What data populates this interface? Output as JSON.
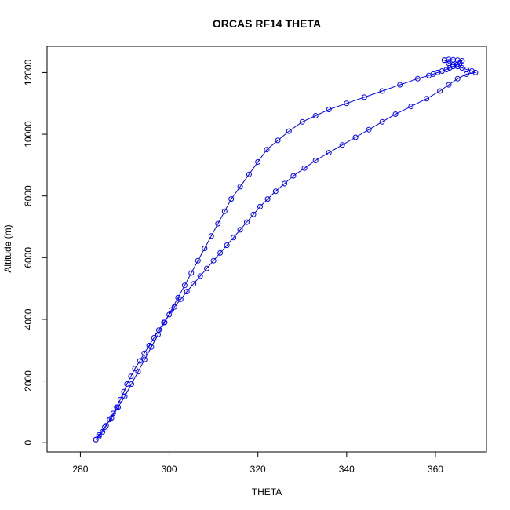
{
  "chart_data": {
    "type": "line",
    "title": "ORCAS RF14 THETA",
    "xlabel": "THETA",
    "ylabel": "Altitude (m)",
    "xlim": [
      272.5,
      371.5
    ],
    "ylim": [
      -300,
      12850
    ],
    "xticks": [
      280,
      300,
      320,
      340,
      360
    ],
    "yticks": [
      0,
      2000,
      4000,
      6000,
      8000,
      10000,
      12000
    ],
    "grid": false,
    "legend": "none",
    "marker": "open-circle",
    "line_style": "solid",
    "series_color": "#0000ff",
    "series": [
      {
        "x": [
          283.5,
          284.2,
          285.0,
          285.8,
          286.6,
          287.4,
          288.2,
          289.0,
          289.8,
          290.5,
          291.4,
          292.3,
          293.4,
          294.4,
          295.5,
          296.6,
          297.7,
          298.8,
          300.0,
          301.2,
          302.6,
          304.0,
          305.5,
          307.0,
          308.5,
          310.0,
          311.5,
          313.0,
          314.5,
          316.0,
          317.5,
          319.0,
          320.5,
          322.2,
          324.0,
          326.0,
          328.0,
          330.5,
          333.0,
          336.0,
          339.0,
          342.0,
          345.0,
          348.0,
          351.0,
          354.5,
          358.0,
          361.0,
          363.0,
          365.0,
          367.0,
          369.0,
          368.2,
          367.0,
          366.0,
          365.0,
          364.0,
          363.0,
          362.0
        ],
        "y": [
          100,
          200,
          350,
          550,
          750,
          950,
          1150,
          1400,
          1650,
          1900,
          2150,
          2400,
          2650,
          2900,
          3150,
          3400,
          3650,
          3900,
          4150,
          4400,
          4650,
          4900,
          5150,
          5400,
          5650,
          5900,
          6150,
          6400,
          6650,
          6900,
          7150,
          7400,
          7650,
          7900,
          8150,
          8400,
          8650,
          8900,
          9150,
          9400,
          9650,
          9900,
          10150,
          10400,
          10650,
          10900,
          11150,
          11400,
          11600,
          11800,
          11950,
          12000,
          12050,
          12100,
          12150,
          12200,
          12250,
          12300,
          12400
        ]
      },
      {
        "x": [
          362.0,
          363.0,
          364.0,
          365.0,
          366.0,
          365.5,
          364.8,
          364.0,
          363.2,
          362.5,
          361.5,
          360.5,
          359.5,
          358.5,
          356.0,
          352.0,
          348.0,
          344.0,
          340.0,
          336.0,
          333.0,
          330.0,
          327.0,
          324.5,
          322.0,
          320.0,
          318.0,
          316.0,
          314.0,
          312.5,
          311.0,
          309.5,
          308.0,
          306.5,
          305.0,
          303.5,
          302.0,
          300.5,
          299.0,
          297.5,
          296.0,
          294.5,
          293.0,
          291.5,
          290.0,
          288.5,
          287.0,
          285.5,
          284.2,
          283.5
        ],
        "y": [
          12400,
          12420,
          12410,
          12400,
          12380,
          12300,
          12250,
          12200,
          12150,
          12100,
          12050,
          12000,
          11950,
          11900,
          11800,
          11600,
          11400,
          11200,
          11000,
          10800,
          10600,
          10400,
          10100,
          9800,
          9500,
          9100,
          8700,
          8300,
          7900,
          7500,
          7100,
          6700,
          6300,
          5900,
          5500,
          5100,
          4700,
          4300,
          3900,
          3500,
          3100,
          2700,
          2300,
          1900,
          1500,
          1150,
          800,
          500,
          250,
          100
        ]
      }
    ]
  }
}
